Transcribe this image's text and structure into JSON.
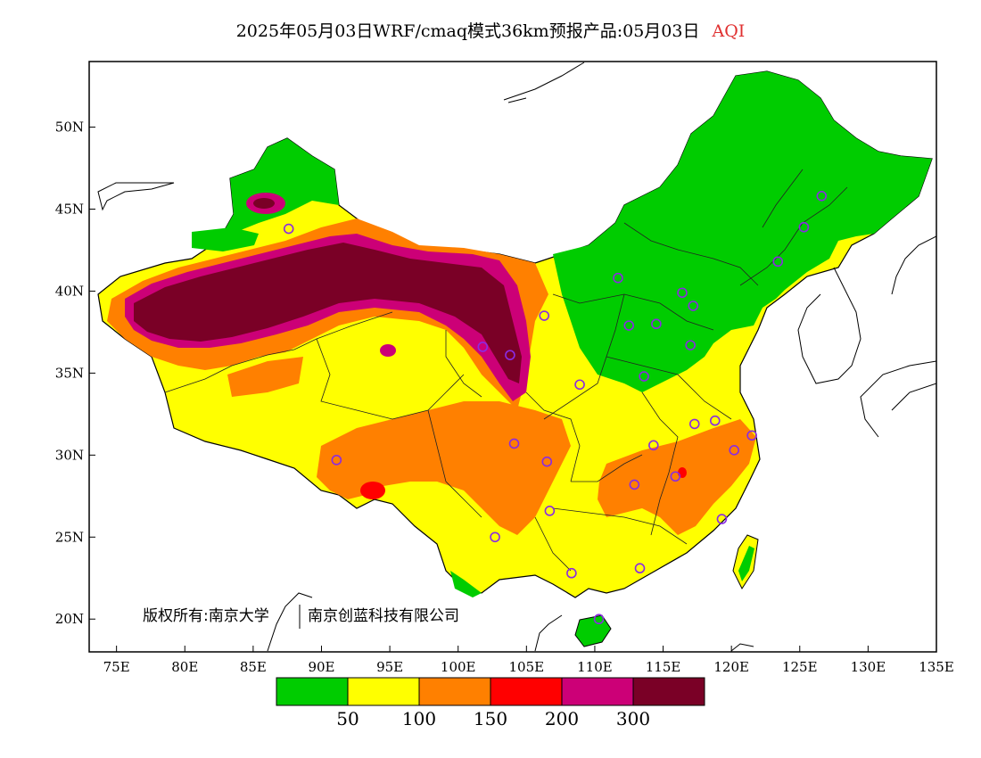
{
  "title": {
    "main": "2025年05月03日WRF/cmaq模式36km预报产品:05月03日",
    "variable": "AQI"
  },
  "axes": {
    "lat_labels": [
      "20N",
      "25N",
      "30N",
      "35N",
      "40N",
      "45N",
      "50N"
    ],
    "lon_labels": [
      "75E",
      "80E",
      "85E",
      "90E",
      "95E",
      "100E",
      "105E",
      "110E",
      "115E",
      "120E",
      "125E",
      "130E",
      "135E"
    ],
    "lon_range": [
      73,
      135
    ],
    "lat_range": [
      18,
      54
    ]
  },
  "copyright": {
    "left": "版权所有:南京大学",
    "right": "南京创蓝科技有限公司"
  },
  "legend": {
    "colors": [
      "#00cc00",
      "#ffff00",
      "#ff8000",
      "#ff0000",
      "#cc0077",
      "#7a0026"
    ],
    "labels": [
      "50",
      "100",
      "150",
      "200",
      "300"
    ]
  },
  "stations": [
    [
      87.6,
      43.8
    ],
    [
      101.8,
      36.6
    ],
    [
      103.8,
      36.1
    ],
    [
      106.3,
      38.5
    ],
    [
      111.7,
      40.8
    ],
    [
      112.5,
      37.9
    ],
    [
      114.5,
      38.0
    ],
    [
      116.4,
      39.9
    ],
    [
      117.2,
      39.1
    ],
    [
      117.0,
      36.7
    ],
    [
      113.6,
      34.8
    ],
    [
      108.9,
      34.3
    ],
    [
      123.4,
      41.8
    ],
    [
      125.3,
      43.9
    ],
    [
      126.6,
      45.8
    ],
    [
      104.1,
      30.7
    ],
    [
      106.5,
      29.6
    ],
    [
      114.3,
      30.6
    ],
    [
      117.3,
      31.9
    ],
    [
      118.8,
      32.1
    ],
    [
      120.2,
      30.3
    ],
    [
      121.5,
      31.2
    ],
    [
      112.9,
      28.2
    ],
    [
      115.9,
      28.7
    ],
    [
      119.3,
      26.1
    ],
    [
      106.7,
      26.6
    ],
    [
      102.7,
      25.0
    ],
    [
      108.3,
      22.8
    ],
    [
      113.3,
      23.1
    ],
    [
      110.3,
      20.0
    ],
    [
      91.1,
      29.7
    ]
  ]
}
